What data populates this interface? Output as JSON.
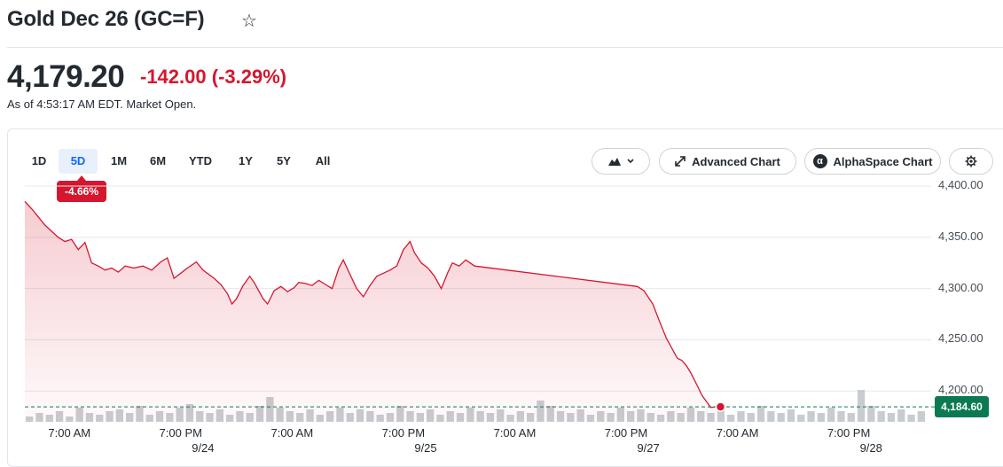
{
  "header": {
    "title": "Gold Dec 26 (GC=F)",
    "star_icon": "star-outline-icon"
  },
  "quote": {
    "price": "4,179.20",
    "change": "-142.00",
    "change_pct": "(-3.29%)",
    "as_of": "As of 4:53:17 AM EDT. Market Open.",
    "colors": {
      "down": "#d6162e",
      "up": "#0b7a53"
    }
  },
  "range_tabs": [
    "1D",
    "5D",
    "1M",
    "6M",
    "YTD",
    "1Y",
    "5Y",
    "All"
  ],
  "active_range": "5D",
  "range_change_badge": "-4.66%",
  "toolbar": {
    "chart_type_icon": "mountain-chart-icon",
    "advanced_chart_label": "Advanced Chart",
    "alphaspace_chart_label": "AlphaSpace Chart",
    "settings_icon": "gear-icon"
  },
  "chart_data": {
    "type": "area",
    "y_ticks": [
      "4,400.00",
      "4,350.00",
      "4,300.00",
      "4,250.00",
      "4,200.00"
    ],
    "ylim": [
      4170,
      4400
    ],
    "x_ticks": [
      {
        "t": 0.95,
        "label": "7:00 AM"
      },
      {
        "t": 1.45,
        "label": "7:00 PM"
      },
      {
        "t": 1.95,
        "label": "7:00 AM"
      },
      {
        "t": 2.45,
        "label": "7:00 PM"
      },
      {
        "t": 2.95,
        "label": "7:00 AM"
      },
      {
        "t": 3.45,
        "label": "7:00 PM"
      },
      {
        "t": 3.95,
        "label": "7:00 AM"
      },
      {
        "t": 4.45,
        "label": "7:00 PM"
      }
    ],
    "date_labels": [
      {
        "t": 1.55,
        "label": "9/24"
      },
      {
        "t": 2.55,
        "label": "9/25"
      },
      {
        "t": 3.55,
        "label": "9/27"
      },
      {
        "t": 4.55,
        "label": "9/28"
      }
    ],
    "x_range": [
      0.75,
      4.8
    ],
    "series": [
      {
        "points": [
          [
            0.75,
            4385
          ],
          [
            0.78,
            4378
          ],
          [
            0.81,
            4370
          ],
          [
            0.84,
            4362
          ],
          [
            0.87,
            4356
          ],
          [
            0.9,
            4350
          ],
          [
            0.93,
            4346
          ],
          [
            0.96,
            4348
          ],
          [
            0.99,
            4338
          ],
          [
            1.02,
            4345
          ],
          [
            1.05,
            4325
          ],
          [
            1.08,
            4322
          ],
          [
            1.11,
            4318
          ],
          [
            1.14,
            4320
          ],
          [
            1.17,
            4316
          ],
          [
            1.2,
            4322
          ],
          [
            1.24,
            4320
          ],
          [
            1.28,
            4322
          ],
          [
            1.32,
            4318
          ],
          [
            1.36,
            4326
          ],
          [
            1.39,
            4330
          ],
          [
            1.42,
            4310
          ],
          [
            1.45,
            4315
          ],
          [
            1.48,
            4320
          ],
          [
            1.52,
            4326
          ],
          [
            1.55,
            4318
          ],
          [
            1.6,
            4310
          ],
          [
            1.63,
            4304
          ],
          [
            1.66,
            4295
          ],
          [
            1.68,
            4285
          ],
          [
            1.7,
            4290
          ],
          [
            1.73,
            4303
          ],
          [
            1.76,
            4312
          ],
          [
            1.78,
            4306
          ],
          [
            1.8,
            4298
          ],
          [
            1.82,
            4290
          ],
          [
            1.84,
            4285
          ],
          [
            1.87,
            4298
          ],
          [
            1.9,
            4302
          ],
          [
            1.93,
            4297
          ],
          [
            1.96,
            4301
          ],
          [
            1.98,
            4306
          ],
          [
            2.01,
            4305
          ],
          [
            2.04,
            4303
          ],
          [
            2.07,
            4308
          ],
          [
            2.1,
            4304
          ],
          [
            2.13,
            4300
          ],
          [
            2.16,
            4320
          ],
          [
            2.18,
            4328
          ],
          [
            2.21,
            4314
          ],
          [
            2.24,
            4300
          ],
          [
            2.27,
            4292
          ],
          [
            2.3,
            4303
          ],
          [
            2.33,
            4312
          ],
          [
            2.36,
            4315
          ],
          [
            2.39,
            4318
          ],
          [
            2.42,
            4322
          ],
          [
            2.45,
            4338
          ],
          [
            2.48,
            4346
          ],
          [
            2.5,
            4335
          ],
          [
            2.53,
            4325
          ],
          [
            2.56,
            4320
          ],
          [
            2.59,
            4312
          ],
          [
            2.62,
            4300
          ],
          [
            2.65,
            4316
          ],
          [
            2.67,
            4325
          ],
          [
            2.7,
            4322
          ],
          [
            2.73,
            4328
          ],
          [
            2.77,
            4322
          ],
          [
            3.5,
            4302
          ],
          [
            3.53,
            4298
          ],
          [
            3.57,
            4285
          ],
          [
            3.6,
            4268
          ],
          [
            3.63,
            4252
          ],
          [
            3.66,
            4240
          ],
          [
            3.68,
            4232
          ],
          [
            3.7,
            4230
          ],
          [
            3.72,
            4225
          ],
          [
            3.74,
            4218
          ],
          [
            3.77,
            4205
          ],
          [
            3.79,
            4196
          ],
          [
            3.81,
            4190
          ],
          [
            3.83,
            4184
          ],
          [
            3.85,
            4184.6
          ]
        ]
      }
    ],
    "last_price_label": "4,184.60",
    "volume_bars": [
      3,
      5,
      4,
      6,
      3,
      8,
      5,
      4,
      6,
      7,
      5,
      9,
      4,
      6,
      5,
      8,
      10,
      6,
      5,
      7,
      4,
      6,
      5,
      9,
      14,
      8,
      6,
      5,
      7,
      4,
      6,
      8,
      5,
      7,
      6,
      4,
      5,
      9,
      6,
      5,
      7,
      4,
      6,
      5,
      8,
      6,
      5,
      7,
      4,
      6,
      5,
      12,
      9,
      6,
      5,
      7,
      4,
      6,
      5,
      8,
      6,
      7,
      5,
      4,
      6,
      5,
      8,
      6,
      5,
      7,
      4,
      6,
      5,
      9,
      6,
      5,
      7,
      4,
      6,
      5,
      8,
      6,
      5,
      18,
      9,
      6,
      5,
      7,
      4,
      6
    ]
  }
}
